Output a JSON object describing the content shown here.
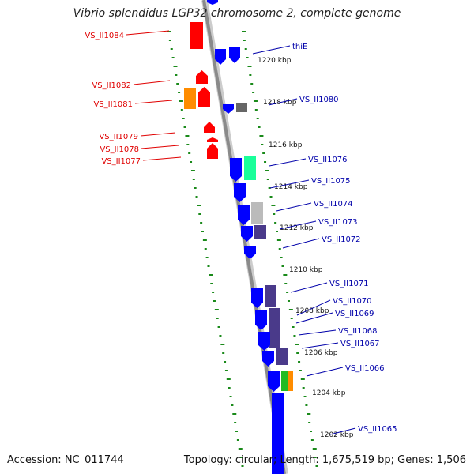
{
  "title": "Vibrio splendidus LGP32 chromosome 2, complete genome",
  "accession_text": "Accession: NC_011744",
  "stats_text": "Topology: circular; Length: 1,675,519 bp; Genes: 1,506",
  "colors": {
    "backbone": "#8a8a8a",
    "ticks": "#1a8a1a",
    "strand_plus": "#0000ff",
    "strand_minus": "#ff0000",
    "left_label": "#e00000",
    "right_label": "#0000aa"
  },
  "kbp_labels": [
    "1220 kbp",
    "1218 kbp",
    "1216 kbp",
    "1214 kbp",
    "1212 kbp",
    "1210 kbp",
    "1208 kbp",
    "1206 kbp",
    "1204 kbp",
    "1202 kbp"
  ],
  "left_labels": [
    "VS_II1084",
    "VS_II1082",
    "VS_II1081",
    "VS_II1079",
    "VS_II1078",
    "VS_II1077"
  ],
  "right_labels": [
    "thiE",
    "VS_II1080",
    "VS_II1076",
    "VS_II1075",
    "VS_II1074",
    "VS_II1073",
    "VS_II1072",
    "VS_II1071",
    "VS_II1070",
    "VS_II1069",
    "VS_II1068",
    "VS_II1067",
    "VS_II1066",
    "VS_II1065"
  ],
  "feature_colors": {
    "minus_red": "#ff0000",
    "minus_orange": "#ff8c00",
    "plus_blue": "#0000ff",
    "gray": "#666666",
    "teal": "#1aff9a",
    "lightgray": "#bbbbbb",
    "purple": "#4a3a8a",
    "green": "#22bb22",
    "orange": "#ff8c00"
  }
}
